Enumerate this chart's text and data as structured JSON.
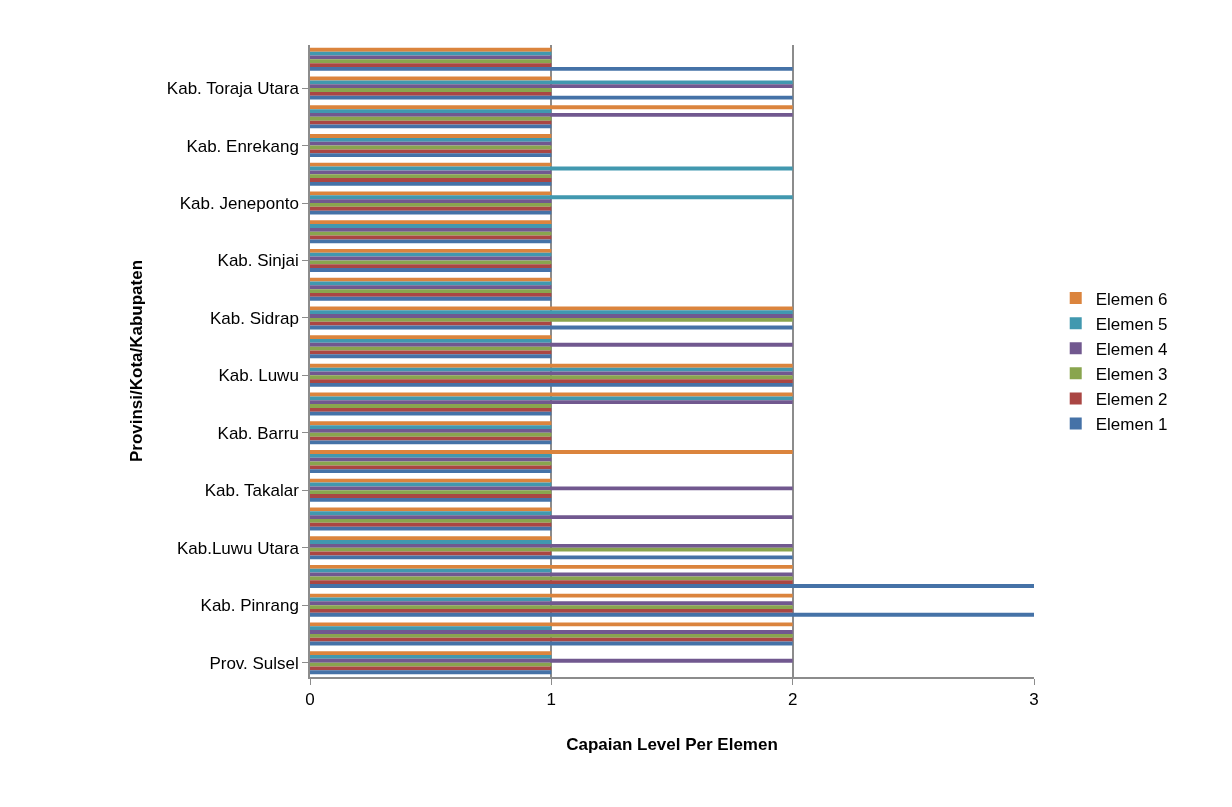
{
  "chart_data": {
    "type": "bar",
    "orientation": "horizontal",
    "xlabel": "Capaian Level Per Elemen",
    "ylabel": "Provinsi/Kota/Kabupaten",
    "categories": [
      null,
      "Kab. Toraja Utara",
      null,
      "Kab. Enrekang",
      null,
      "Kab. Jeneponto",
      null,
      "Kab. Sinjai",
      null,
      "Kab. Sidrap",
      null,
      "Kab. Luwu",
      null,
      "Kab. Barru",
      null,
      "Kab. Takalar",
      null,
      "Kab.Luwu Utara",
      null,
      "Kab. Pinrang",
      null,
      "Prov. Sulsel"
    ],
    "series": [
      {
        "name": "Elemen 1",
        "color": "#4572a7",
        "values": [
          2,
          2,
          1,
          1,
          1,
          1,
          1,
          1,
          1,
          2,
          1,
          2,
          1,
          1,
          1,
          1,
          1,
          2,
          3,
          3,
          2,
          1
        ]
      },
      {
        "name": "Elemen 2",
        "color": "#aa4643",
        "values": [
          1,
          1,
          1,
          1,
          1,
          1,
          1,
          1,
          1,
          1,
          1,
          2,
          1,
          1,
          1,
          1,
          1,
          1,
          2,
          2,
          2,
          1
        ]
      },
      {
        "name": "Elemen 3",
        "color": "#89a54e",
        "values": [
          1,
          1,
          1,
          1,
          1,
          1,
          1,
          1,
          1,
          2,
          1,
          2,
          1,
          1,
          1,
          1,
          1,
          2,
          2,
          2,
          2,
          1
        ]
      },
      {
        "name": "Elemen 4",
        "color": "#71588f",
        "values": [
          1,
          2,
          2,
          1,
          1,
          1,
          1,
          1,
          1,
          2,
          2,
          2,
          2,
          1,
          1,
          2,
          2,
          2,
          2,
          2,
          2,
          2
        ]
      },
      {
        "name": "Elemen 5",
        "color": "#4198af",
        "values": [
          1,
          2,
          1,
          1,
          2,
          2,
          1,
          1,
          1,
          2,
          1,
          2,
          2,
          1,
          1,
          1,
          1,
          1,
          1,
          1,
          1,
          1
        ]
      },
      {
        "name": "Elemen 6",
        "color": "#db843d",
        "values": [
          1,
          1,
          2,
          1,
          1,
          1,
          1,
          1,
          1,
          2,
          1,
          2,
          2,
          1,
          2,
          1,
          1,
          1,
          2,
          2,
          2,
          1
        ]
      }
    ],
    "xlim": [
      0,
      3
    ],
    "xticks": [
      0,
      1,
      2,
      3
    ],
    "grid": "x",
    "legend": "right"
  }
}
